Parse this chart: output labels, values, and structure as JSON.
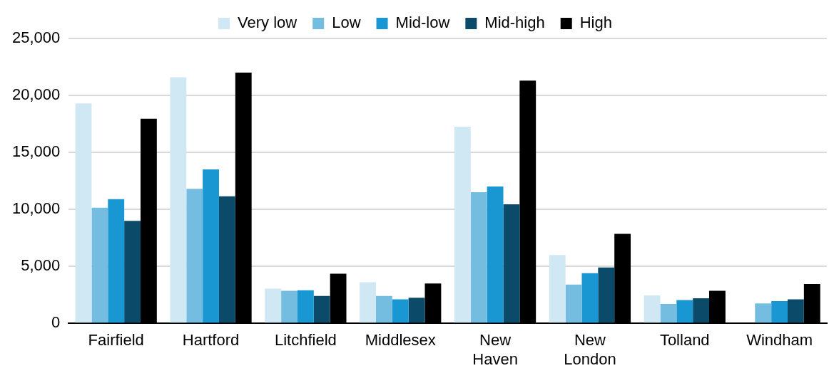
{
  "chart_data": {
    "type": "bar",
    "categories": [
      "Fairfield",
      "Hartford",
      "Litchfield",
      "Middlesex",
      "New Haven",
      "New London",
      "Tolland",
      "Windham"
    ],
    "series": [
      {
        "name": "Very low",
        "color": "#d0e7f4",
        "values": [
          19300,
          21600,
          3050,
          3600,
          17250,
          6000,
          2450,
          null
        ]
      },
      {
        "name": "Low",
        "color": "#74bde0",
        "values": [
          10150,
          11800,
          2850,
          2400,
          11500,
          3400,
          1700,
          1750
        ]
      },
      {
        "name": "Mid-low",
        "color": "#1897d3",
        "values": [
          10900,
          13500,
          2900,
          2100,
          12000,
          4400,
          2050,
          1950
        ]
      },
      {
        "name": "Mid-high",
        "color": "#0c4a69",
        "values": [
          9000,
          11150,
          2400,
          2250,
          10450,
          4900,
          2200,
          2100
        ]
      },
      {
        "name": "High",
        "color": "#000000",
        "values": [
          17950,
          22000,
          4350,
          3500,
          21300,
          7850,
          2850,
          3450
        ]
      }
    ],
    "ylim": [
      0,
      25000
    ],
    "yticks": [
      0,
      {
        "value": 5000,
        "label": "5,000"
      },
      {
        "value": 10000,
        "label": "10,000"
      },
      {
        "value": 15000,
        "label": "15,000"
      },
      {
        "value": 20000,
        "label": "20,000"
      },
      {
        "value": 25000,
        "label": "25,000"
      }
    ],
    "grid": "y",
    "legend": "top"
  }
}
